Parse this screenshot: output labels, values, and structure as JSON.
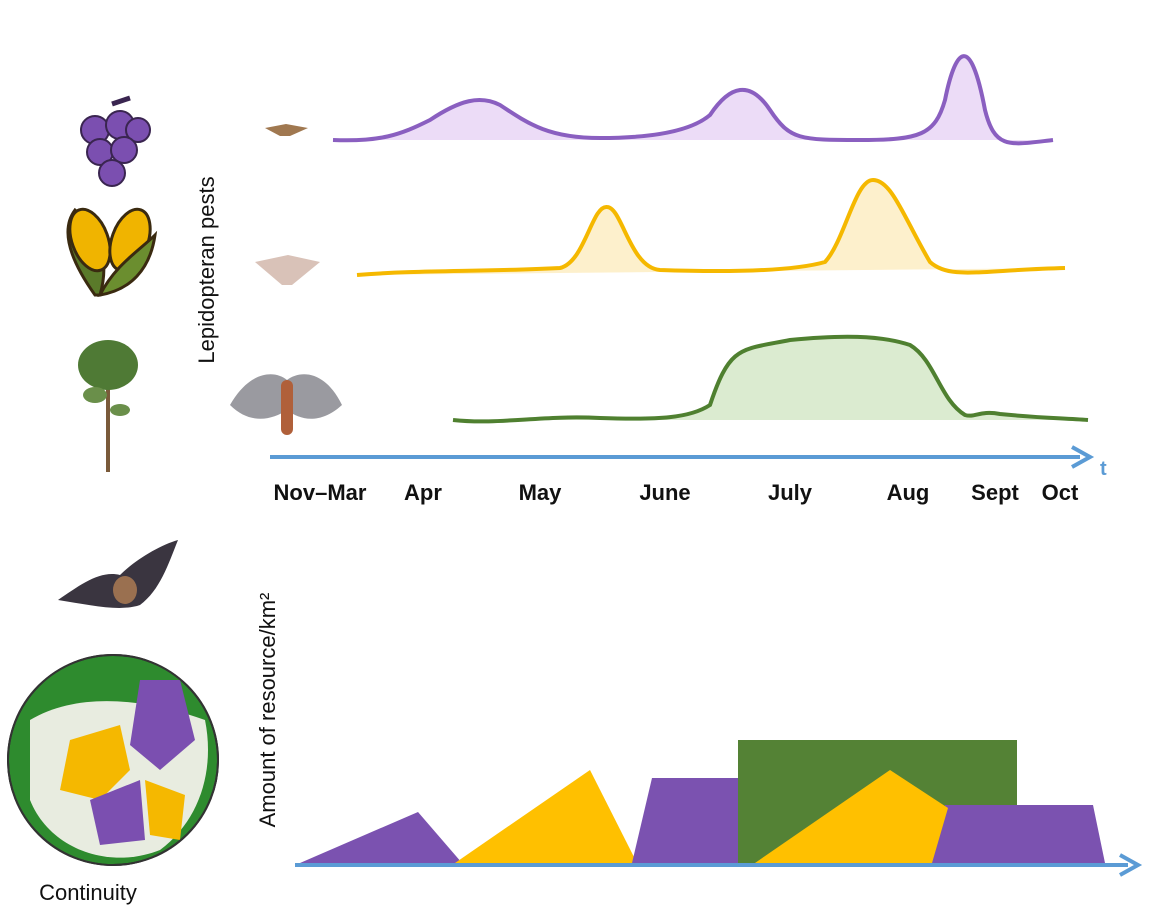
{
  "y_axis_top": "Lepidopteran pests",
  "months": [
    "Nov–Mar",
    "Apr",
    "May",
    "June",
    "July",
    "Aug",
    "Sept",
    "Oct"
  ],
  "time_label": "t",
  "y_axis_bottom": "Amount of resource/km²",
  "caption": "Continuity"
}
